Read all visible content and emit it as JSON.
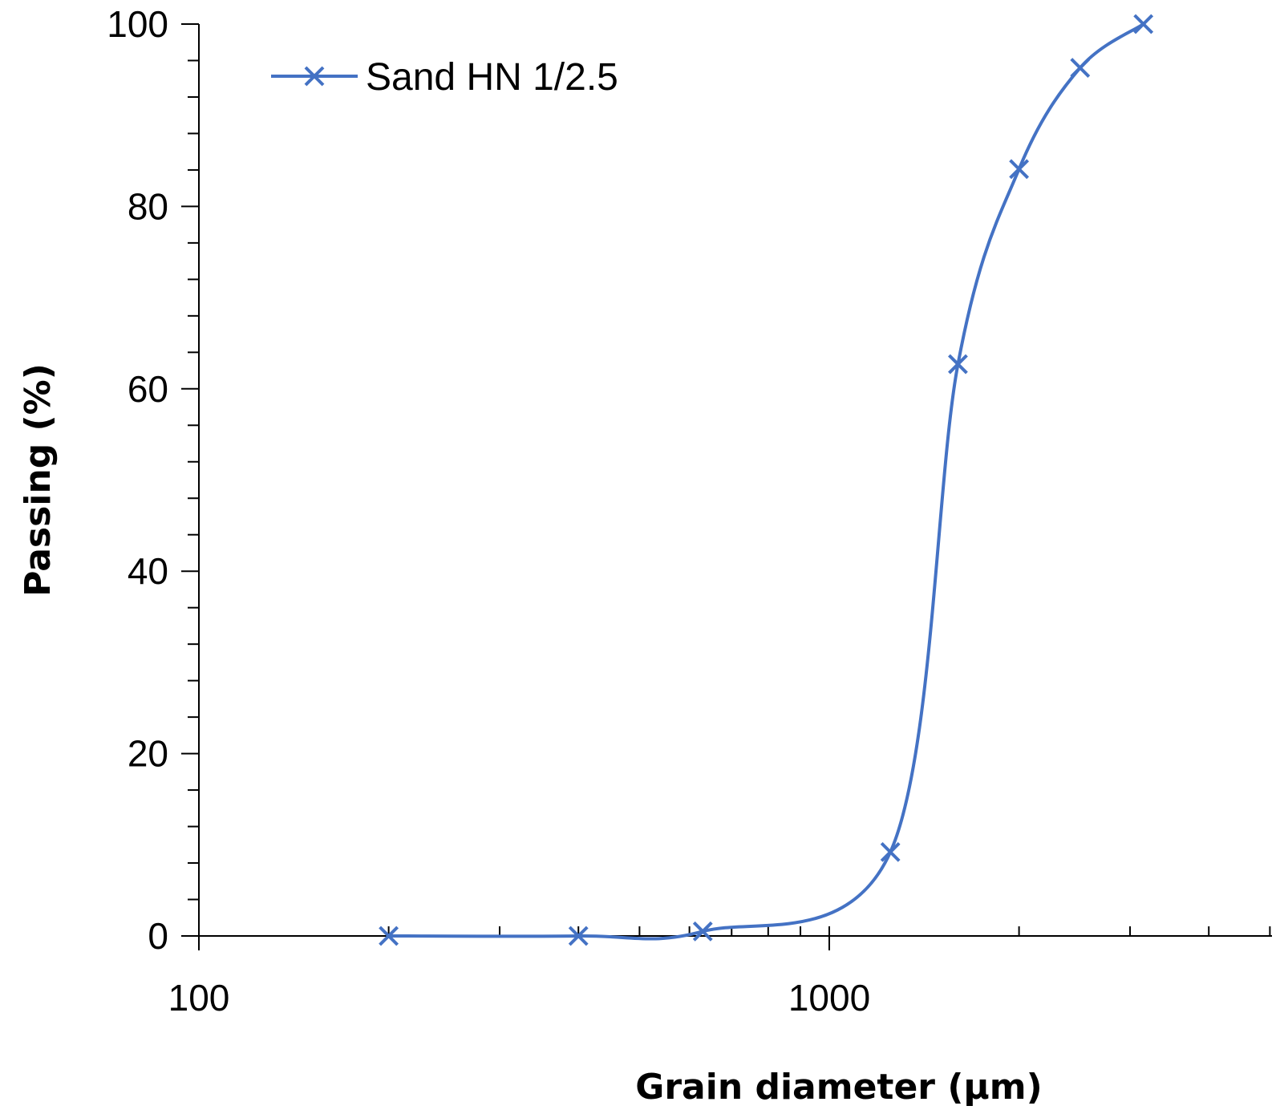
{
  "chart_data": {
    "type": "line",
    "x_scale": "log",
    "xlabel": "Grain diameter (µm)",
    "ylabel": "Passing (%)",
    "xlim": [
      100,
      5000
    ],
    "ylim": [
      0,
      100
    ],
    "x_tick_labels": [
      "100",
      "1000"
    ],
    "y_tick_labels": [
      "0",
      "20",
      "40",
      "60",
      "80",
      "100"
    ],
    "grid": false,
    "legend_position": "top-left",
    "smooth": true,
    "series": [
      {
        "name": "Sand HN 1/2.5",
        "color": "#4472C4",
        "marker": "x",
        "x": [
          200,
          400,
          630,
          1250,
          1600,
          2000,
          2500,
          3150
        ],
        "y": [
          0,
          0,
          0.5,
          9.2,
          62.7,
          84.1,
          95.2,
          100
        ]
      }
    ]
  }
}
